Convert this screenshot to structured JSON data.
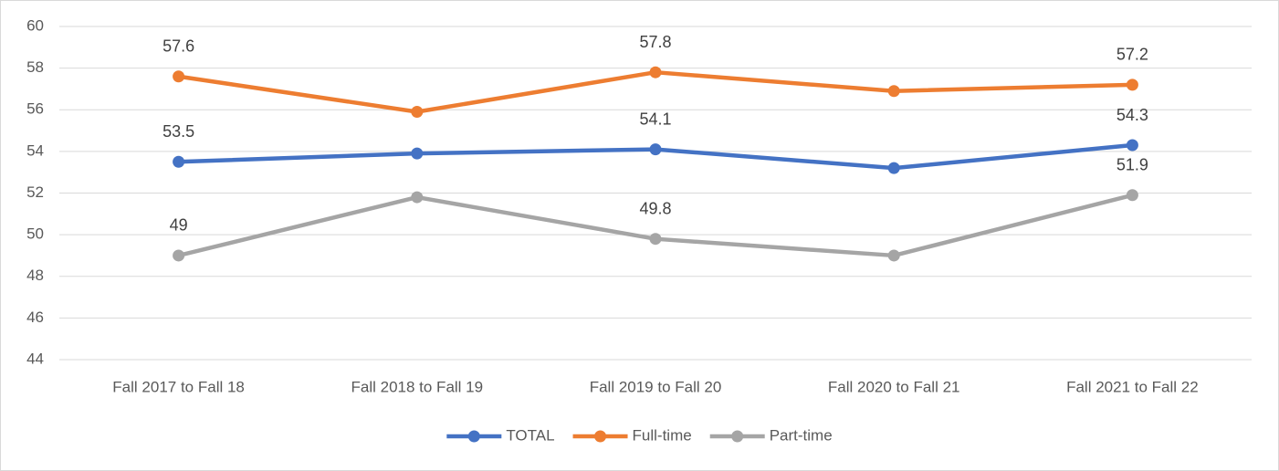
{
  "chart_data": {
    "type": "line",
    "categories": [
      "Fall 2017 to Fall 18",
      "Fall 2018 to Fall 19",
      "Fall 2019 to Fall 20",
      "Fall 2020 to Fall 21",
      "Fall 2021 to Fall 22"
    ],
    "series": [
      {
        "name": "TOTAL",
        "color": "#4472c4",
        "values": [
          53.5,
          53.9,
          54.1,
          53.2,
          54.3
        ],
        "value_labels": [
          "53.5",
          null,
          "54.1",
          null,
          "54.3"
        ]
      },
      {
        "name": "Full-time",
        "color": "#ed7d31",
        "values": [
          57.6,
          55.9,
          57.8,
          56.9,
          57.2
        ],
        "value_labels": [
          "57.6",
          null,
          "57.8",
          null,
          "57.2"
        ]
      },
      {
        "name": "Part-time",
        "color": "#a5a5a5",
        "values": [
          49,
          51.8,
          49.8,
          49.0,
          51.9
        ],
        "value_labels": [
          "49",
          null,
          "49.8",
          null,
          "51.9"
        ]
      }
    ],
    "ylim": [
      44,
      60
    ],
    "yticks": [
      44,
      46,
      48,
      50,
      52,
      54,
      56,
      58,
      60
    ],
    "grid": true,
    "legend": "bottom"
  }
}
